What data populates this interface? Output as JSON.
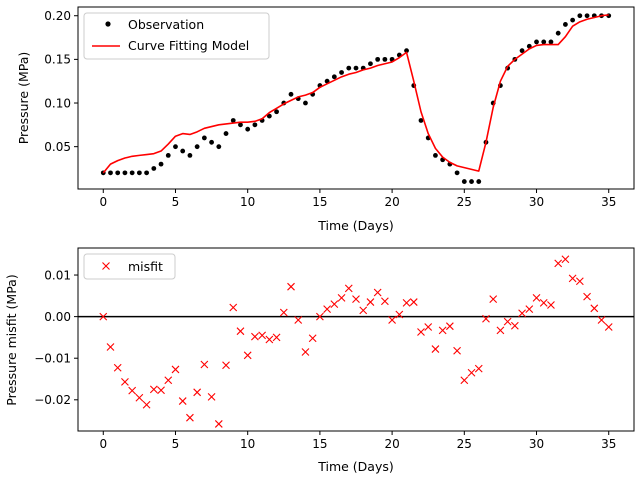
{
  "chart_data": [
    {
      "type": "scatter",
      "xlabel": "Time (Days)",
      "ylabel": "Pressure (MPa)",
      "xlim": [
        -1.75,
        36.75
      ],
      "ylim": [
        0.0015,
        0.21
      ],
      "xticks": [
        "0",
        "5",
        "10",
        "15",
        "20",
        "25",
        "30",
        "35"
      ],
      "xtick_values": [
        0,
        5,
        10,
        15,
        20,
        25,
        30,
        35
      ],
      "yticks": [
        "0.05",
        "0.10",
        "0.15",
        "0.20"
      ],
      "ytick_values": [
        0.05,
        0.1,
        0.15,
        0.2
      ],
      "legend_position": "upper-left",
      "series": [
        {
          "name": "Observation",
          "kind": "points",
          "color": "#000000",
          "x": [
            0,
            0.5,
            1,
            1.5,
            2,
            2.5,
            3,
            3.5,
            4,
            4.5,
            5,
            5.5,
            6,
            6.5,
            7,
            7.5,
            8,
            8.5,
            9,
            9.5,
            10,
            10.5,
            11,
            11.5,
            12,
            12.5,
            13,
            13.5,
            14,
            14.5,
            15,
            15.5,
            16,
            16.5,
            17,
            17.5,
            18,
            18.5,
            19,
            19.5,
            20,
            20.5,
            21,
            21.5,
            22,
            22.5,
            23,
            23.5,
            24,
            24.5,
            25,
            25.5,
            26,
            26.5,
            27,
            27.5,
            28,
            28.5,
            29,
            29.5,
            30,
            30.5,
            31,
            31.5,
            32,
            32.5,
            33,
            33.5,
            34,
            34.5,
            35
          ],
          "y": [
            0.02,
            0.02,
            0.02,
            0.02,
            0.02,
            0.02,
            0.02,
            0.025,
            0.03,
            0.04,
            0.05,
            0.045,
            0.04,
            0.05,
            0.06,
            0.055,
            0.05,
            0.065,
            0.08,
            0.075,
            0.07,
            0.075,
            0.08,
            0.085,
            0.09,
            0.1,
            0.11,
            0.105,
            0.1,
            0.11,
            0.12,
            0.125,
            0.13,
            0.135,
            0.14,
            0.14,
            0.14,
            0.145,
            0.15,
            0.15,
            0.15,
            0.155,
            0.16,
            0.12,
            0.08,
            0.06,
            0.04,
            0.035,
            0.03,
            0.02,
            0.01,
            0.01,
            0.01,
            0.055,
            0.1,
            0.12,
            0.14,
            0.15,
            0.16,
            0.165,
            0.17,
            0.17,
            0.17,
            0.18,
            0.19,
            0.195,
            0.2,
            0.2,
            0.2,
            0.2,
            0.2
          ]
        },
        {
          "name": "Curve Fitting Model",
          "kind": "line",
          "color": "#ff0000",
          "x": [
            0,
            0.5,
            1,
            1.5,
            2,
            2.5,
            3,
            3.5,
            4,
            4.5,
            5,
            5.5,
            6,
            6.5,
            7,
            7.5,
            8,
            8.5,
            9,
            9.5,
            10,
            10.5,
            11,
            11.5,
            12,
            12.5,
            13,
            13.5,
            14,
            14.5,
            15,
            15.5,
            16,
            16.5,
            17,
            17.5,
            18,
            18.5,
            19,
            19.5,
            20,
            20.5,
            21,
            21.5,
            22,
            22.5,
            23,
            23.5,
            24,
            24.5,
            25,
            25.5,
            26,
            26.5,
            27,
            27.5,
            28,
            28.5,
            29,
            29.5,
            30,
            30.5,
            31,
            31.5,
            32,
            32.5,
            33,
            33.5,
            34,
            34.5,
            35
          ],
          "y": [
            0.02,
            0.03,
            0.034,
            0.037,
            0.039,
            0.04,
            0.041,
            0.042,
            0.045,
            0.053,
            0.062,
            0.065,
            0.064,
            0.067,
            0.071,
            0.073,
            0.075,
            0.076,
            0.077,
            0.078,
            0.078,
            0.079,
            0.082,
            0.089,
            0.094,
            0.099,
            0.103,
            0.107,
            0.109,
            0.112,
            0.118,
            0.122,
            0.126,
            0.13,
            0.133,
            0.135,
            0.138,
            0.14,
            0.143,
            0.145,
            0.147,
            0.152,
            0.158,
            0.125,
            0.09,
            0.065,
            0.048,
            0.038,
            0.032,
            0.028,
            0.026,
            0.024,
            0.022,
            0.055,
            0.095,
            0.125,
            0.142,
            0.15,
            0.156,
            0.162,
            0.166,
            0.167,
            0.167,
            0.167,
            0.176,
            0.188,
            0.193,
            0.196,
            0.198,
            0.2,
            0.201
          ]
        }
      ]
    },
    {
      "type": "scatter",
      "xlabel": "Time (Days)",
      "ylabel": "Pressure misfit (MPa)",
      "xlim": [
        -1.75,
        36.75
      ],
      "ylim": [
        -0.0275,
        0.0165
      ],
      "xticks": [
        "0",
        "5",
        "10",
        "15",
        "20",
        "25",
        "30",
        "35"
      ],
      "xtick_values": [
        0,
        5,
        10,
        15,
        20,
        25,
        30,
        35
      ],
      "yticks": [
        "−0.02",
        "−0.01",
        "0.00",
        "0.01"
      ],
      "ytick_values": [
        -0.02,
        -0.01,
        0.0,
        0.01
      ],
      "zero_line": true,
      "legend_position": "upper-left",
      "series": [
        {
          "name": "misfit",
          "kind": "crosses",
          "color": "#ff0000",
          "x": [
            0,
            0.5,
            1,
            1.5,
            2,
            2.5,
            3,
            3.5,
            4,
            4.5,
            5,
            5.5,
            6,
            6.5,
            7,
            7.5,
            8,
            8.5,
            9,
            9.5,
            10,
            10.5,
            11,
            11.5,
            12,
            12.5,
            13,
            13.5,
            14,
            14.5,
            15,
            15.5,
            16,
            16.5,
            17,
            17.5,
            18,
            18.5,
            19,
            19.5,
            20,
            20.5,
            21,
            21.5,
            22,
            22.5,
            23,
            23.5,
            24,
            24.5,
            25,
            25.5,
            26,
            26.5,
            27,
            27.5,
            28,
            28.5,
            29,
            29.5,
            30,
            30.5,
            31,
            31.5,
            32,
            32.5,
            33,
            33.5,
            34,
            34.5,
            35
          ],
          "y": [
            0.0,
            -0.0073,
            -0.0123,
            -0.0157,
            -0.0178,
            -0.0195,
            -0.0212,
            -0.0175,
            -0.0177,
            -0.0153,
            -0.0127,
            -0.0203,
            -0.0243,
            -0.0182,
            -0.0115,
            -0.0193,
            -0.0258,
            -0.0117,
            0.0022,
            -0.0035,
            -0.0093,
            -0.0048,
            -0.0045,
            -0.0055,
            -0.005,
            0.001,
            0.0072,
            -0.0008,
            -0.0085,
            -0.0052,
            0.0,
            0.0018,
            0.003,
            0.0045,
            0.0068,
            0.0042,
            0.0015,
            0.0035,
            0.0058,
            0.0037,
            -0.0008,
            0.0005,
            0.0033,
            0.0035,
            -0.0037,
            -0.0025,
            -0.0078,
            -0.0033,
            -0.0023,
            -0.0082,
            -0.0153,
            -0.0135,
            -0.0125,
            -0.0005,
            0.0042,
            -0.0033,
            -0.0012,
            -0.0022,
            0.0008,
            0.0018,
            0.0045,
            0.0033,
            0.0028,
            0.0128,
            0.0138,
            0.0092,
            0.0085,
            0.0048,
            0.002,
            -0.0008,
            -0.0025
          ]
        }
      ]
    }
  ]
}
